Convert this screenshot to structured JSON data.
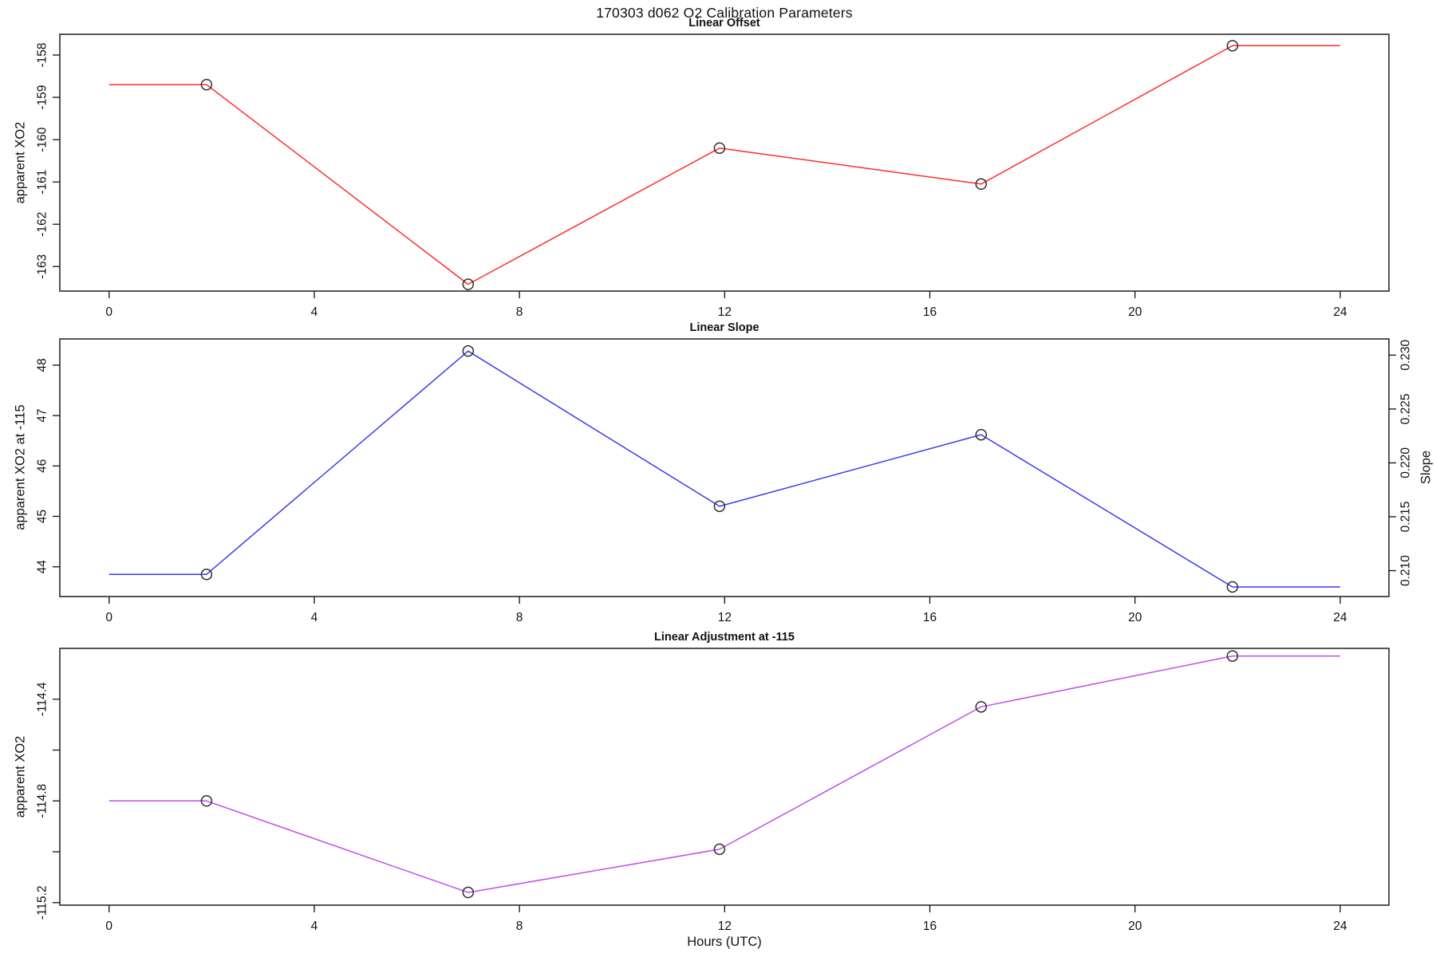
{
  "page": {
    "title": "170303   d062   O2 Calibration Parameters",
    "background": "#ffffff",
    "text_color": "#111111",
    "marker_color": "#2f2f2f"
  },
  "axes": {
    "xlabel": "Hours (UTC)",
    "xlim": [
      -0.96,
      24.95
    ],
    "xticks": [
      0,
      4,
      8,
      12,
      16,
      20,
      24
    ],
    "xtick_labels": [
      "0",
      "4",
      "8",
      "12",
      "16",
      "20",
      "24"
    ]
  },
  "chart_data": [
    {
      "type": "line",
      "title": "Linear Offset",
      "ylabel": "apparent XO2",
      "color": "#ff2d2d",
      "x": [
        1.9,
        7.0,
        11.9,
        17.0,
        21.9
      ],
      "values": [
        -158.7,
        -163.42,
        -160.2,
        -161.05,
        -157.78
      ],
      "flat_ends": [
        0,
        24
      ],
      "ylim": [
        -163.58,
        -157.51
      ],
      "yticks": [
        -163,
        -162,
        -161,
        -160,
        -159,
        -158
      ],
      "ytick_labels": [
        "-163",
        "-162",
        "-161",
        "-160",
        "-159",
        "-158"
      ],
      "grid": false,
      "marker": "open-circle"
    },
    {
      "type": "line",
      "title": "Linear Slope",
      "ylabel": "apparent XO2 at -115",
      "ylabel_right": "Slope",
      "color": "#3a3aef",
      "x": [
        1.9,
        7.0,
        11.9,
        17.0,
        21.9
      ],
      "values": [
        43.85,
        48.28,
        45.2,
        46.62,
        43.6
      ],
      "flat_ends": [
        0,
        24
      ],
      "ylim": [
        43.41,
        48.52
      ],
      "yticks": [
        44,
        45,
        46,
        47,
        48
      ],
      "ytick_labels": [
        "44",
        "45",
        "46",
        "47",
        "48"
      ],
      "right_ylim": [
        0.2076,
        0.2315
      ],
      "right_yticks": [
        0.21,
        0.215,
        0.22,
        0.225,
        0.23
      ],
      "right_ytick_labels": [
        "0.210",
        "0.215",
        "0.220",
        "0.225",
        "0.230"
      ],
      "grid": false,
      "marker": "open-circle"
    },
    {
      "type": "line",
      "title": "Linear Adjustment at -115",
      "ylabel": "apparent XO2",
      "color": "#bd4df0",
      "x": [
        1.9,
        7.0,
        11.9,
        17.0,
        21.9
      ],
      "values": [
        -114.8,
        -115.16,
        -114.99,
        -114.43,
        -114.23
      ],
      "flat_ends": [
        0,
        24
      ],
      "ylim": [
        -115.21,
        -114.2
      ],
      "yticks": [
        -115.2,
        -115.0,
        -114.8,
        -114.6,
        -114.4
      ],
      "ytick_labels": [
        "-115.2",
        "",
        "-114.8",
        "",
        "-114.4"
      ],
      "grid": false,
      "marker": "open-circle"
    }
  ]
}
